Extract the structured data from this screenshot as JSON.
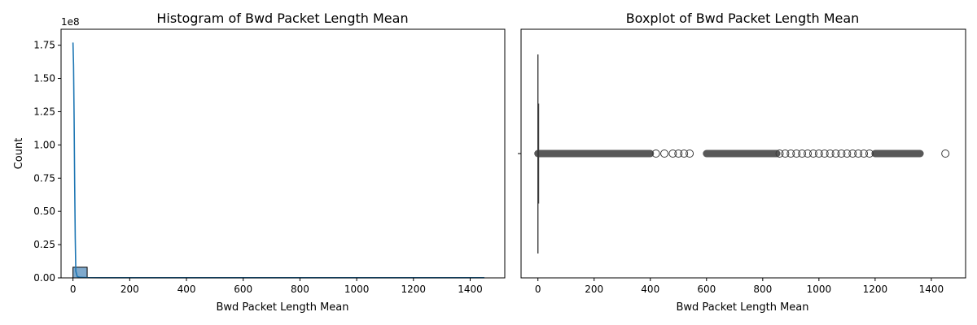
{
  "chart_data": [
    {
      "type": "histogram",
      "title": "Histogram of Bwd Packet Length Mean",
      "xlabel": "Bwd Packet Length Mean",
      "ylabel": "Count",
      "y_offset_label": "1e8",
      "xlim": [
        -42,
        1522
      ],
      "ylim": [
        0,
        1.87
      ],
      "xticks": [
        0,
        200,
        400,
        600,
        800,
        1000,
        1200,
        1400
      ],
      "xtick_labels": [
        "0",
        "200",
        "400",
        "600",
        "800",
        "1000",
        "1200",
        "1400"
      ],
      "yticks": [
        0,
        0.25,
        0.5,
        0.75,
        1.0,
        1.25,
        1.5,
        1.75
      ],
      "ytick_labels": [
        "0.00",
        "0.25",
        "0.50",
        "0.75",
        "1.00",
        "1.25",
        "1.50",
        "1.75"
      ],
      "bins": [
        {
          "x0": 0,
          "x1": 50,
          "count": 0.08
        }
      ],
      "kde_line": {
        "x": [
          0,
          2,
          4,
          6,
          8,
          10,
          15,
          25,
          50,
          100,
          200,
          400,
          800,
          1200,
          1450
        ],
        "y": [
          1.77,
          1.6,
          1.2,
          0.7,
          0.3,
          0.05,
          0.01,
          0.004,
          0.002,
          0.001,
          0.001,
          0.001,
          0.001,
          0.001,
          0.001
        ]
      },
      "colors": {
        "bar_fill": "#7fa9cc",
        "bar_edge": "#000000",
        "line": "#1f77b4"
      },
      "grid": false
    },
    {
      "type": "boxplot",
      "title": "Boxplot of Bwd Packet Length Mean",
      "xlabel": "Bwd Packet Length Mean",
      "xlim": [
        -60,
        1522
      ],
      "xticks": [
        0,
        200,
        400,
        600,
        800,
        1000,
        1200,
        1400
      ],
      "xtick_labels": [
        "0",
        "200",
        "400",
        "600",
        "800",
        "1000",
        "1200",
        "1400"
      ],
      "box": {
        "q1": 0,
        "median": 0,
        "q3": 1,
        "whisker_low": 0,
        "whisker_high": 3
      },
      "outlier_ranges": [
        [
          0,
          400
        ],
        [
          600,
          850
        ],
        [
          1200,
          1360
        ]
      ],
      "outliers": [
        420,
        450,
        480,
        500,
        520,
        540,
        860,
        880,
        900,
        920,
        940,
        960,
        980,
        1000,
        1020,
        1040,
        1060,
        1080,
        1100,
        1120,
        1140,
        1160,
        1180,
        1450
      ],
      "colors": {
        "box_line": "#3b3b3b",
        "outlier_edge": "#3b3b3b"
      },
      "grid": false
    }
  ]
}
